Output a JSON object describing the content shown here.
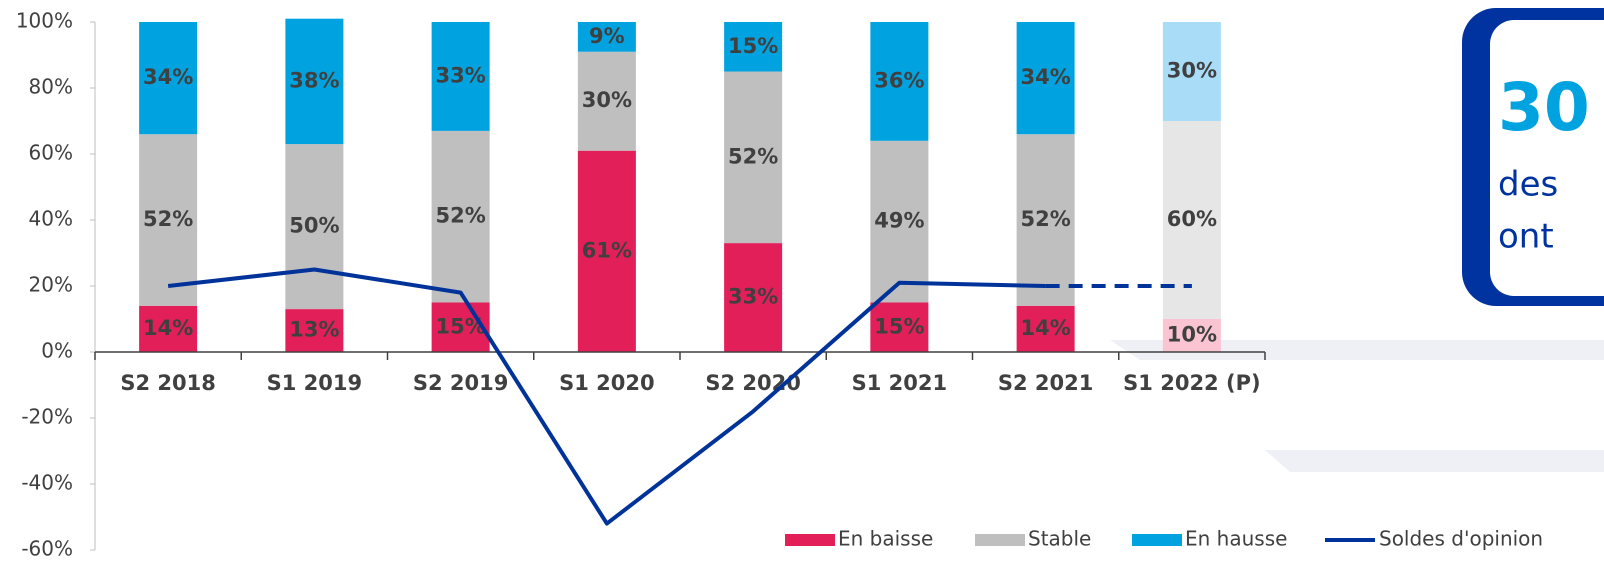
{
  "chart_data": {
    "type": "stacked_bar_line",
    "categories": [
      "S2 2018",
      "S1 2019",
      "S2 2019",
      "S1 2020",
      "S2 2020",
      "S1 2021",
      "S2 2021",
      "S1 2022 (P)"
    ],
    "series": [
      {
        "name": "En baisse",
        "color": "#e31f5a",
        "projected_color": "#fbc4d3",
        "values": [
          14,
          13,
          15,
          61,
          33,
          15,
          14,
          10
        ],
        "value_labels": [
          "14%",
          "13%",
          "15%",
          "61%",
          "33%",
          "15%",
          "14%",
          "10%"
        ]
      },
      {
        "name": "Stable",
        "color": "#bfbfbf",
        "projected_color": "#e6e6e6",
        "values": [
          52,
          50,
          52,
          30,
          52,
          49,
          52,
          60
        ],
        "value_labels": [
          "52%",
          "50%",
          "52%",
          "30%",
          "52%",
          "49%",
          "52%",
          "60%"
        ]
      },
      {
        "name": "En hausse",
        "color": "#00a3e0",
        "projected_color": "#a9dcf6",
        "values": [
          34,
          38,
          33,
          9,
          15,
          36,
          34,
          30
        ],
        "value_labels": [
          "34%",
          "38%",
          "33%",
          "9%",
          "15%",
          "36%",
          "34%",
          "30%"
        ]
      },
      {
        "name": "Soldes d'opinion",
        "type": "line",
        "color": "#003399",
        "projected_dash": true,
        "values": [
          20,
          25,
          18,
          -52,
          -18,
          21,
          20,
          20
        ]
      }
    ],
    "ylim": [
      -60,
      100
    ],
    "yticks": [
      {
        "value": -60,
        "label": "-60%"
      },
      {
        "value": -40,
        "label": "-40%"
      },
      {
        "value": -20,
        "label": "-20%"
      },
      {
        "value": 0,
        "label": "0%"
      },
      {
        "value": 20,
        "label": "20%"
      },
      {
        "value": 40,
        "label": "40%"
      },
      {
        "value": 60,
        "label": "60%"
      },
      {
        "value": 80,
        "label": "80%"
      },
      {
        "value": 100,
        "label": "100%"
      }
    ],
    "legend": "bottom-right"
  },
  "callout": {
    "number": "30",
    "lines": [
      "des",
      "ont"
    ]
  }
}
